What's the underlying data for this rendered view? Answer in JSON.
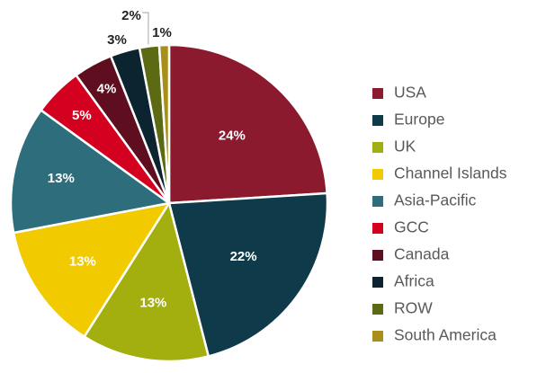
{
  "chart_data": {
    "type": "pie",
    "title": "",
    "legend_position": "right",
    "start_angle_deg": 0,
    "direction": "clockwise",
    "slices": [
      {
        "label": "USA",
        "value": 24,
        "display": "24%",
        "color": "#8B1A2F",
        "label_color": "#ffffff"
      },
      {
        "label": "Europe",
        "value": 22,
        "display": "22%",
        "color": "#0E3A4A",
        "label_color": "#ffffff"
      },
      {
        "label": "UK",
        "value": 13,
        "display": "13%",
        "color": "#A3AE0F",
        "label_color": "#ffffff"
      },
      {
        "label": "Channel Islands",
        "value": 13,
        "display": "13%",
        "color": "#F1CB00",
        "label_color": "#ffffff"
      },
      {
        "label": "Asia-Pacific",
        "value": 13,
        "display": "13%",
        "color": "#2E6E7C",
        "label_color": "#ffffff"
      },
      {
        "label": "GCC",
        "value": 5,
        "display": "5%",
        "color": "#D3001F",
        "label_color": "#ffffff"
      },
      {
        "label": "Canada",
        "value": 4,
        "display": "4%",
        "color": "#5E0E1E",
        "label_color": "#ffffff"
      },
      {
        "label": "Africa",
        "value": 3,
        "display": "3%",
        "color": "#0B2430",
        "label_color": "#222222"
      },
      {
        "label": "ROW",
        "value": 2,
        "display": "2%",
        "color": "#5C6A13",
        "label_color": "#222222"
      },
      {
        "label": "South America",
        "value": 1,
        "display": "1%",
        "color": "#A88F1A",
        "label_color": "#222222"
      }
    ]
  }
}
